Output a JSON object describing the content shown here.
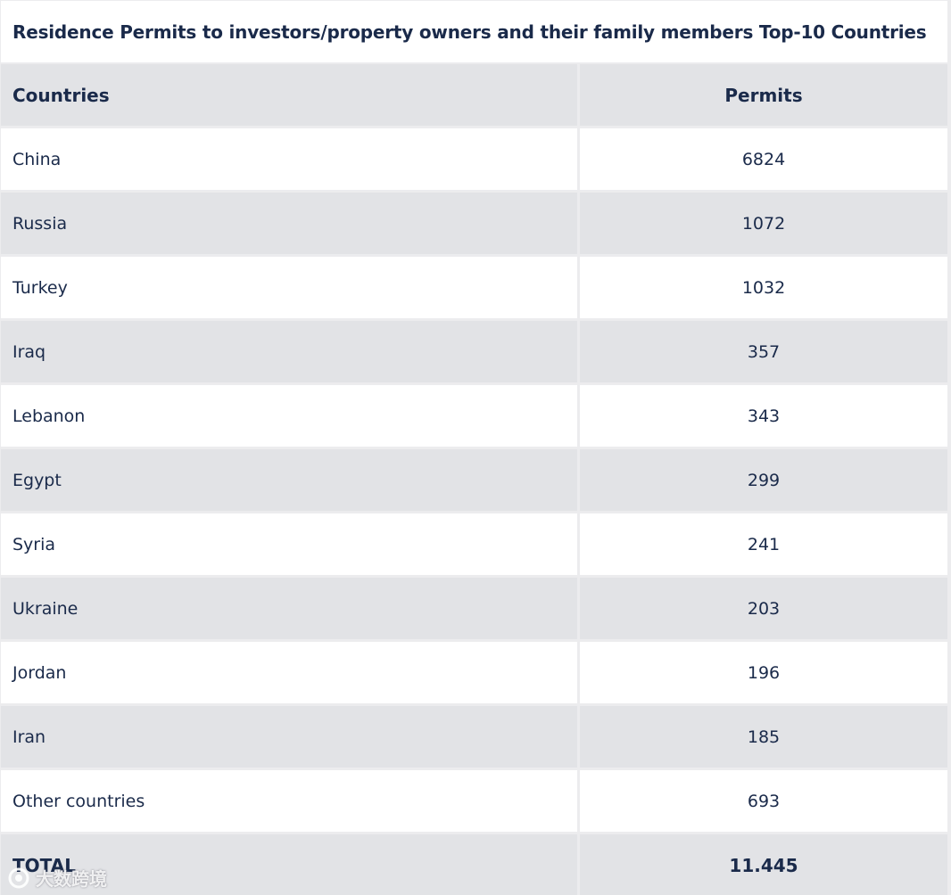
{
  "table": {
    "title": "Residence Permits to investors/property owners and their family members Top-10 Countries",
    "headers": {
      "country": "Countries",
      "permits": "Permits"
    },
    "rows": [
      {
        "country": "China",
        "permits": "6824"
      },
      {
        "country": "Russia",
        "permits": "1072"
      },
      {
        "country": "Turkey",
        "permits": "1032"
      },
      {
        "country": "Iraq",
        "permits": "357"
      },
      {
        "country": "Lebanon",
        "permits": "343"
      },
      {
        "country": "Egypt",
        "permits": "299"
      },
      {
        "country": "Syria",
        "permits": "241"
      },
      {
        "country": "Ukraine",
        "permits": "203"
      },
      {
        "country": "Jordan",
        "permits": "196"
      },
      {
        "country": "Iran",
        "permits": "185"
      },
      {
        "country": "Other countries",
        "permits": "693"
      }
    ],
    "total": {
      "label": "TOTAL",
      "value": "11.445"
    }
  },
  "watermark": {
    "text": "大数跨境",
    "icon": "brand-logo-icon"
  },
  "colors": {
    "text": "#1a2a4a",
    "shaded_row": "#e2e3e6",
    "plain_row": "#ffffff",
    "grid_line": "#ececee"
  }
}
